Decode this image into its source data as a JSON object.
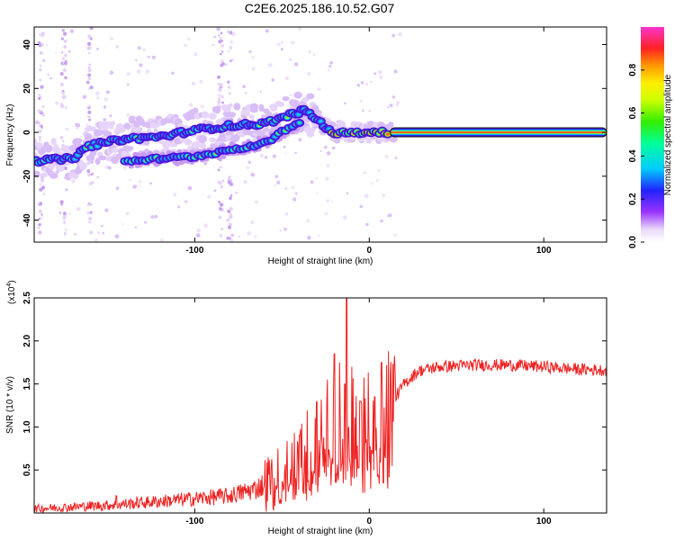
{
  "title": "C2E6.2025.186.10.52.G07",
  "chart_data": [
    {
      "type": "heatmap",
      "xlabel": "Height of straight line (km)",
      "ylabel": "Frequency (Hz)",
      "xlim": [
        -192,
        136
      ],
      "ylim": [
        -50,
        48
      ],
      "xticks": [
        -100,
        0,
        100
      ],
      "yticks": [
        -40,
        -20,
        0,
        20,
        40
      ],
      "ridge": [
        {
          "x": -192,
          "y": -13
        },
        {
          "x": -170,
          "y": -12
        },
        {
          "x": -160,
          "y": -6
        },
        {
          "x": -140,
          "y": -3
        },
        {
          "x": -120,
          "y": -2
        },
        {
          "x": -100,
          "y": 1
        },
        {
          "x": -80,
          "y": 3
        },
        {
          "x": -60,
          "y": 4
        },
        {
          "x": -45,
          "y": 8
        },
        {
          "x": -37,
          "y": 10
        },
        {
          "x": -30,
          "y": 6
        },
        {
          "x": -22,
          "y": 0
        },
        {
          "x": -10,
          "y": 0
        },
        {
          "x": 0,
          "y": 0
        },
        {
          "x": 12,
          "y": 0
        }
      ],
      "branch": [
        {
          "x": -140,
          "y": -13
        },
        {
          "x": -100,
          "y": -11
        },
        {
          "x": -80,
          "y": -8
        },
        {
          "x": -60,
          "y": -5
        },
        {
          "x": -48,
          "y": 1
        },
        {
          "x": -40,
          "y": 5
        }
      ],
      "steady_line": {
        "x_start": 12,
        "x_end": 136,
        "y": 0
      },
      "colorbar": {
        "label": "Normalized spectral amplitude",
        "range": [
          0,
          1
        ],
        "ticks": [
          "0.0",
          "0.2",
          "0.4",
          "0.6",
          "0.8"
        ]
      }
    },
    {
      "type": "line",
      "xlabel": "Height of straight line (km)",
      "ylabel": "SNR (10 * v/v)",
      "scale_note": "(x10",
      "scale_exp": "4",
      "scale_close": ")",
      "xlim": [
        -192,
        136
      ],
      "ylim": [
        0,
        2.5
      ],
      "xticks": [
        -100,
        0,
        100
      ],
      "yticks": [
        "0.5",
        "1.0",
        "1.5",
        "2.0",
        "2.5"
      ],
      "series_color": "#ee2222",
      "trend": [
        {
          "x": -192,
          "y": 0.05
        },
        {
          "x": -150,
          "y": 0.09
        },
        {
          "x": -110,
          "y": 0.15
        },
        {
          "x": -80,
          "y": 0.2
        },
        {
          "x": -65,
          "y": 0.28
        },
        {
          "x": -50,
          "y": 0.45
        },
        {
          "x": -40,
          "y": 0.65
        },
        {
          "x": -30,
          "y": 0.8
        },
        {
          "x": -20,
          "y": 0.85
        },
        {
          "x": -12,
          "y": 0.9
        },
        {
          "x": -5,
          "y": 1.05
        },
        {
          "x": 0,
          "y": 1.1
        },
        {
          "x": 6,
          "y": 0.95
        },
        {
          "x": 12,
          "y": 1.25
        },
        {
          "x": 20,
          "y": 1.5
        },
        {
          "x": 28,
          "y": 1.65
        },
        {
          "x": 40,
          "y": 1.7
        },
        {
          "x": 60,
          "y": 1.72
        },
        {
          "x": 80,
          "y": 1.72
        },
        {
          "x": 100,
          "y": 1.7
        },
        {
          "x": 120,
          "y": 1.67
        },
        {
          "x": 136,
          "y": 1.66
        }
      ],
      "spikes": [
        {
          "x": -13,
          "y": 2.5
        },
        {
          "x": -20,
          "y": 1.85
        },
        {
          "x": -17,
          "y": 1.75
        },
        {
          "x": -10,
          "y": 1.7
        },
        {
          "x": -24,
          "y": 1.55
        },
        {
          "x": -14,
          "y": 1.5
        },
        {
          "x": 7,
          "y": 1.75
        },
        {
          "x": -5,
          "y": 1.3
        },
        {
          "x": 3,
          "y": 1.35
        },
        {
          "x": -40,
          "y": 0.9
        },
        {
          "x": -30,
          "y": 1.3
        },
        {
          "x": -145,
          "y": 0.2
        }
      ],
      "dip": {
        "x": 8,
        "y": 0.35
      }
    }
  ]
}
